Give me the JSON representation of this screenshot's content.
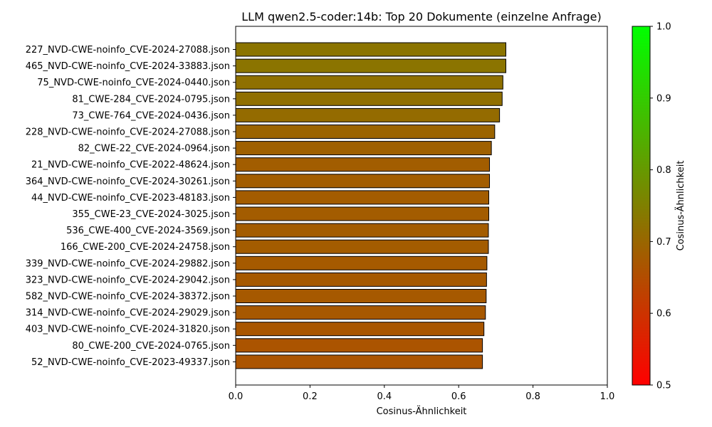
{
  "chart_data": {
    "type": "bar",
    "orientation": "horizontal",
    "title": "LLM qwen2.5-coder:14b: Top 20 Dokumente (einzelne Anfrage)",
    "xlabel": "Cosinus-Ähnlichkeit",
    "ylabel": "",
    "xlim": [
      0,
      1
    ],
    "xticks": [
      "0.0",
      "0.2",
      "0.4",
      "0.6",
      "0.8",
      "1.0"
    ],
    "grid": false,
    "categories": [
      "227_NVD-CWE-noinfo_CVE-2024-27088.json",
      "465_NVD-CWE-noinfo_CVE-2024-33883.json",
      "75_NVD-CWE-noinfo_CVE-2024-0440.json",
      "81_CWE-284_CVE-2024-0795.json",
      "73_CWE-764_CVE-2024-0436.json",
      "228_NVD-CWE-noinfo_CVE-2024-27088.json",
      "82_CWE-22_CVE-2024-0964.json",
      "21_NVD-CWE-noinfo_CVE-2022-48624.json",
      "364_NVD-CWE-noinfo_CVE-2024-30261.json",
      "44_NVD-CWE-noinfo_CVE-2023-48183.json",
      "355_CWE-23_CVE-2024-3025.json",
      "536_CWE-400_CVE-2024-3569.json",
      "166_CWE-200_CVE-2024-24758.json",
      "339_NVD-CWE-noinfo_CVE-2024-29882.json",
      "323_NVD-CWE-noinfo_CVE-2024-29042.json",
      "582_NVD-CWE-noinfo_CVE-2024-38372.json",
      "314_NVD-CWE-noinfo_CVE-2024-29029.json",
      "403_NVD-CWE-noinfo_CVE-2024-31820.json",
      "80_CWE-200_CVE-2024-0765.json",
      "52_NVD-CWE-noinfo_CVE-2023-49337.json"
    ],
    "values": [
      0.727,
      0.727,
      0.719,
      0.717,
      0.71,
      0.697,
      0.688,
      0.683,
      0.683,
      0.681,
      0.681,
      0.68,
      0.68,
      0.676,
      0.675,
      0.674,
      0.672,
      0.668,
      0.664,
      0.664
    ],
    "colorbar": {
      "label": "Cosinus-Ähnlichkeit",
      "range": [
        0.5,
        1.0
      ],
      "ticks": [
        "0.5",
        "0.6",
        "0.7",
        "0.8",
        "0.9",
        "1.0"
      ],
      "low_color": "#ff0000",
      "high_color": "#00ff00"
    },
    "bar_edge_color": "#000000"
  }
}
